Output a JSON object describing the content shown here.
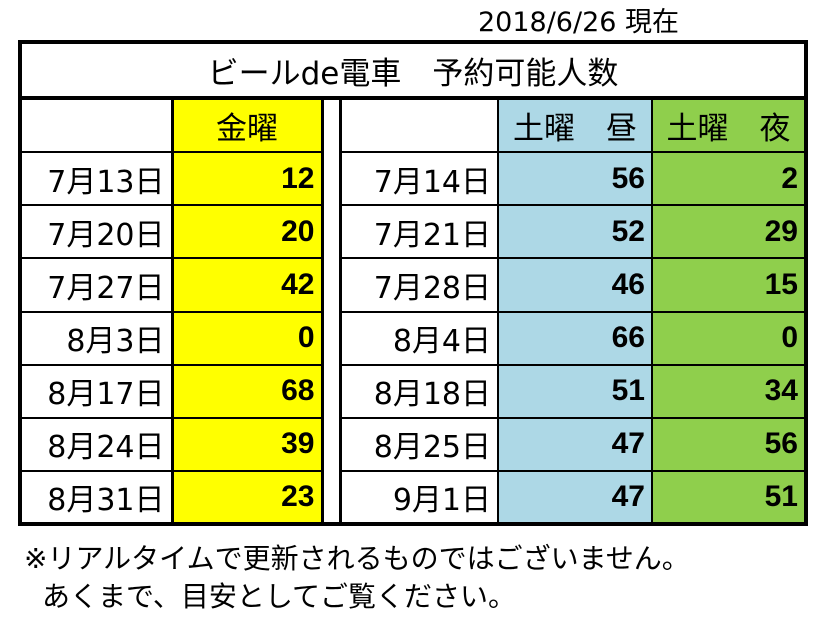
{
  "header": {
    "as_of": "2018/6/26 現在"
  },
  "table": {
    "title": "ビールde電車　予約可能人数",
    "columns": {
      "friday": "金曜",
      "saturday_day": "土曜　昼",
      "saturday_night": "土曜　夜"
    },
    "rows": [
      {
        "fri_date": "7月13日",
        "fri": "12",
        "sat_date": "7月14日",
        "sat_day": "56",
        "sat_night": "2"
      },
      {
        "fri_date": "7月20日",
        "fri": "20",
        "sat_date": "7月21日",
        "sat_day": "52",
        "sat_night": "29"
      },
      {
        "fri_date": "7月27日",
        "fri": "42",
        "sat_date": "7月28日",
        "sat_day": "46",
        "sat_night": "15"
      },
      {
        "fri_date": "8月3日",
        "fri": "0",
        "sat_date": "8月4日",
        "sat_day": "66",
        "sat_night": "0"
      },
      {
        "fri_date": "8月17日",
        "fri": "68",
        "sat_date": "8月18日",
        "sat_day": "51",
        "sat_night": "34"
      },
      {
        "fri_date": "8月24日",
        "fri": "39",
        "sat_date": "8月25日",
        "sat_day": "47",
        "sat_night": "56"
      },
      {
        "fri_date": "8月31日",
        "fri": "23",
        "sat_date": "9月1日",
        "sat_day": "47",
        "sat_night": "51"
      }
    ]
  },
  "note": {
    "line1": "※リアルタイムで更新されるものではございません。",
    "line2": "あくまで、目安としてご覧ください。"
  },
  "colors": {
    "friday": "#ffff00",
    "saturday_day": "#add8e6",
    "saturday_night": "#8fcf4c"
  }
}
